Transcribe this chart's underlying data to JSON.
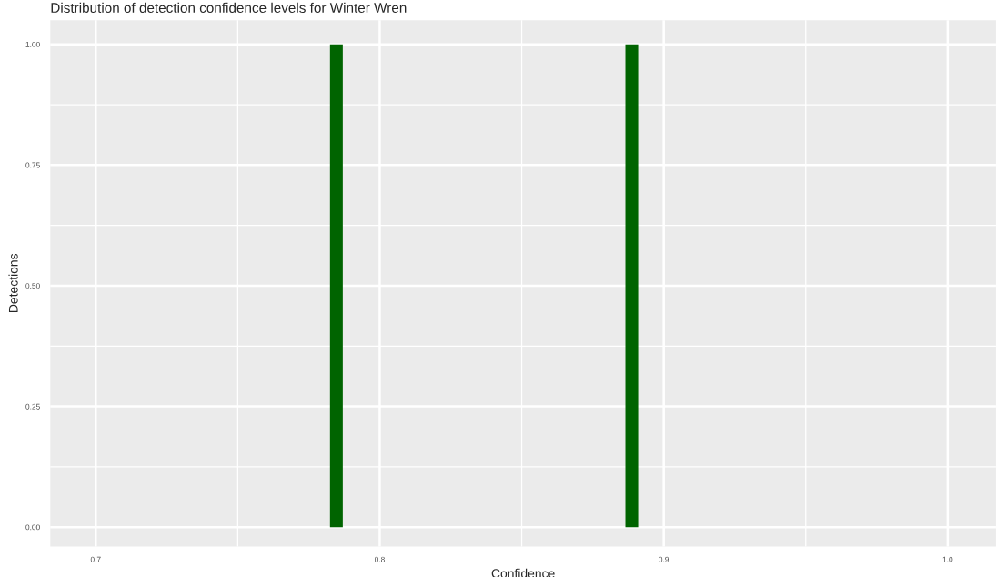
{
  "chart_data": {
    "type": "histogram",
    "title": "Distribution of detection confidence levels for Winter Wren",
    "xlabel": "Confidence",
    "ylabel": "Detections",
    "bins": [
      0.7825,
      0.787,
      0.8865,
      0.891
    ],
    "values": [
      1,
      0,
      1
    ],
    "color": "#006400",
    "xlim": [
      0.684,
      1.017
    ],
    "xticks": [
      {
        "value": 0.7,
        "label": "0.7"
      },
      {
        "value": 0.8,
        "label": "0.8"
      },
      {
        "value": 0.9,
        "label": "0.9"
      },
      {
        "value": 1.0,
        "label": "1.0"
      }
    ],
    "ylim": [
      -0.04,
      1.05
    ],
    "yticks": [
      {
        "value": 0,
        "label": "0.00"
      },
      {
        "value": 0.25,
        "label": "0.25"
      },
      {
        "value": 0.5,
        "label": "0.50"
      },
      {
        "value": 0.75,
        "label": "0.75"
      },
      {
        "value": 1.0,
        "label": "1.00"
      }
    ],
    "grid": true
  }
}
